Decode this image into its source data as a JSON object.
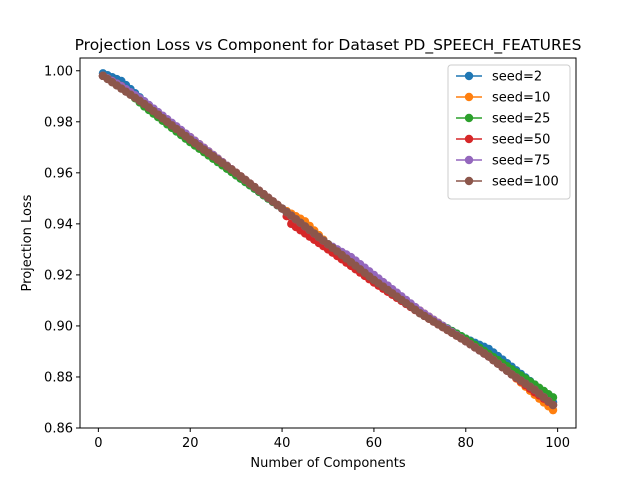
{
  "chart_data": {
    "type": "line",
    "title": "Projection Loss vs Component for Dataset PD_SPEECH_FEATURES",
    "xlabel": "Number of Components",
    "ylabel": "Projection Loss",
    "xlim": [
      -4,
      104
    ],
    "ylim": [
      0.86,
      1.005
    ],
    "xticks": [
      0,
      20,
      40,
      60,
      80,
      100
    ],
    "xtick_labels": [
      "0",
      "20",
      "40",
      "60",
      "80",
      "100"
    ],
    "yticks": [
      0.86,
      0.88,
      0.9,
      0.92,
      0.94,
      0.96,
      0.98,
      1.0
    ],
    "ytick_labels": [
      "0.86",
      "0.88",
      "0.90",
      "0.92",
      "0.94",
      "0.96",
      "0.98",
      "1.00"
    ],
    "grid": false,
    "legend_position": "top-right",
    "marker": "circle",
    "series": [
      {
        "name": "seed=2",
        "color": "#1f77b4",
        "x": [
          1,
          5,
          10,
          20,
          30,
          40,
          50,
          60,
          70,
          80,
          85,
          90,
          95,
          99
        ],
        "y": [
          0.999,
          0.996,
          0.988,
          0.973,
          0.959,
          0.946,
          0.932,
          0.918,
          0.905,
          0.895,
          0.891,
          0.884,
          0.877,
          0.87
        ]
      },
      {
        "name": "seed=10",
        "color": "#ff7f0e",
        "x": [
          1,
          5,
          10,
          20,
          30,
          40,
          45,
          50,
          60,
          70,
          80,
          85,
          90,
          95,
          99
        ],
        "y": [
          0.998,
          0.994,
          0.987,
          0.974,
          0.96,
          0.946,
          0.941,
          0.932,
          0.918,
          0.906,
          0.894,
          0.888,
          0.881,
          0.873,
          0.867
        ]
      },
      {
        "name": "seed=25",
        "color": "#2ca02c",
        "x": [
          1,
          5,
          10,
          20,
          30,
          40,
          50,
          60,
          70,
          80,
          85,
          90,
          95,
          99
        ],
        "y": [
          0.998,
          0.994,
          0.986,
          0.972,
          0.959,
          0.946,
          0.932,
          0.918,
          0.905,
          0.895,
          0.889,
          0.883,
          0.877,
          0.872
        ]
      },
      {
        "name": "seed=50",
        "color": "#d62728",
        "x": [
          1,
          5,
          10,
          20,
          30,
          40,
          42,
          50,
          60,
          70,
          80,
          85,
          90,
          95,
          99
        ],
        "y": [
          0.998,
          0.994,
          0.987,
          0.973,
          0.96,
          0.946,
          0.94,
          0.93,
          0.917,
          0.905,
          0.894,
          0.888,
          0.881,
          0.874,
          0.869
        ]
      },
      {
        "name": "seed=75",
        "color": "#9467bd",
        "x": [
          1,
          5,
          10,
          20,
          30,
          40,
          50,
          55,
          60,
          70,
          80,
          85,
          90,
          95,
          99
        ],
        "y": [
          0.998,
          0.994,
          0.988,
          0.974,
          0.96,
          0.946,
          0.932,
          0.927,
          0.92,
          0.906,
          0.894,
          0.888,
          0.881,
          0.875,
          0.869
        ]
      },
      {
        "name": "seed=100",
        "color": "#8c564b",
        "x": [
          1,
          5,
          10,
          20,
          30,
          40,
          50,
          60,
          70,
          80,
          85,
          90,
          95,
          99
        ],
        "y": [
          0.998,
          0.993,
          0.987,
          0.973,
          0.96,
          0.946,
          0.932,
          0.918,
          0.905,
          0.894,
          0.888,
          0.881,
          0.875,
          0.869
        ]
      }
    ]
  }
}
